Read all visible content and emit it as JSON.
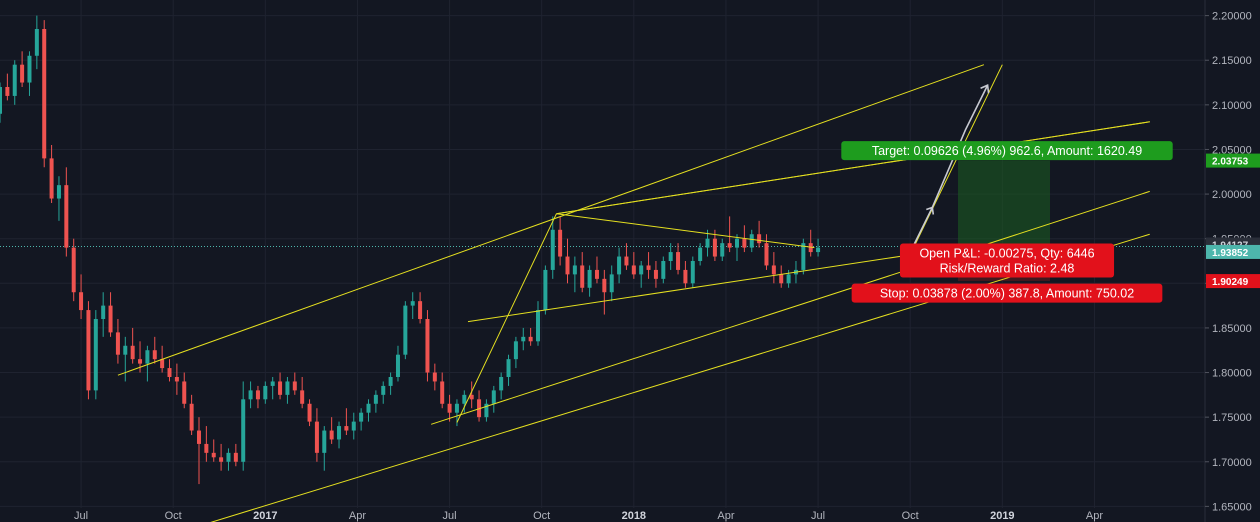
{
  "chart_data": {
    "type": "candlestick",
    "title": "",
    "ylim": [
      1.6325,
      2.2175
    ],
    "y_ticks": [
      "1.65000",
      "1.70000",
      "1.75000",
      "1.80000",
      "1.85000",
      "1.90000",
      "1.95000",
      "2.00000",
      "2.05000",
      "2.10000",
      "2.15000",
      "2.20000"
    ],
    "x_ticks": [
      {
        "label": "Jul",
        "bold": false
      },
      {
        "label": "Oct",
        "bold": false
      },
      {
        "label": "2017",
        "bold": true
      },
      {
        "label": "Apr",
        "bold": false
      },
      {
        "label": "Jul",
        "bold": false
      },
      {
        "label": "Oct",
        "bold": false
      },
      {
        "label": "2018",
        "bold": true
      },
      {
        "label": "Apr",
        "bold": false
      },
      {
        "label": "Jul",
        "bold": false
      },
      {
        "label": "Oct",
        "bold": false
      },
      {
        "label": "2019",
        "bold": true
      },
      {
        "label": "Apr",
        "bold": false
      }
    ],
    "grid": true,
    "colors": {
      "up": "#26a69a",
      "down": "#ef5350",
      "line": "#e5e020",
      "target": "#1e9c1e",
      "stop": "#e2111b",
      "price": "#4db6ac"
    },
    "price_labels": [
      {
        "value": 2.03753,
        "label": "2.03753",
        "kind": "target"
      },
      {
        "value": 1.94127,
        "label": "1.94127",
        "kind": "current"
      },
      {
        "value": 1.93852,
        "label": "1.93852",
        "kind": "last"
      },
      {
        "value": 1.90249,
        "label": "1.90249",
        "kind": "stop"
      }
    ],
    "position": {
      "entry": 1.94127,
      "target": 2.03753,
      "stop": 1.90249,
      "target_text": "Target: 0.09626 (4.96%) 962.6, Amount: 1620.49",
      "open_text": "Open P&L: -0.00275, Qty: 6446",
      "rr_text": "Risk/Reward Ratio: 2.48",
      "stop_text": "Stop: 0.03878 (2.00%) 387.8, Amount: 750.02"
    },
    "trendlines": [
      [
        [
          2016.6,
          1.797
        ],
        [
          2018.95,
          2.145
        ]
      ],
      [
        [
          2016.82,
          1.628
        ],
        [
          2019.4,
          1.955
        ]
      ],
      [
        [
          2017.45,
          1.742
        ],
        [
          2019.4,
          2.003
        ]
      ],
      [
        [
          2017.79,
          1.978
        ],
        [
          2019.4,
          2.081
        ]
      ],
      [
        [
          2017.79,
          1.978
        ],
        [
          2018.49,
          1.94
        ]
      ],
      [
        [
          2017.55,
          1.857
        ],
        [
          2018.8,
          1.935
        ]
      ],
      [
        [
          2017.52,
          1.744
        ],
        [
          2017.79,
          1.978
        ]
      ],
      [
        [
          2018.73,
          1.915
        ],
        [
          2019.0,
          2.145
        ]
      ],
      [
        [
          2017.79,
          1.978
        ],
        [
          2019.4,
          2.081
        ]
      ]
    ],
    "projection": [
      [
        2018.73,
        1.918
      ],
      [
        2018.81,
        1.985
      ],
      [
        2018.9,
        2.072
      ],
      [
        2018.96,
        2.122
      ]
    ],
    "candles": [
      [
        2016.16,
        2.05,
        2.08,
        2.04,
        2.065
      ],
      [
        2016.18,
        2.065,
        2.1,
        2.05,
        2.08
      ],
      [
        2016.2,
        2.08,
        2.09,
        2.07,
        2.088
      ],
      [
        2016.22,
        2.088,
        2.125,
        2.08,
        2.11
      ],
      [
        2016.24,
        2.11,
        2.145,
        2.095,
        2.13
      ],
      [
        2016.26,
        2.13,
        2.14,
        2.085,
        2.09
      ],
      [
        2016.28,
        2.09,
        2.125,
        2.08,
        2.12
      ],
      [
        2016.3,
        2.12,
        2.135,
        2.105,
        2.11
      ],
      [
        2016.32,
        2.11,
        2.15,
        2.1,
        2.145
      ],
      [
        2016.34,
        2.145,
        2.16,
        2.12,
        2.125
      ],
      [
        2016.36,
        2.125,
        2.16,
        2.11,
        2.155
      ],
      [
        2016.38,
        2.155,
        2.2,
        2.14,
        2.185
      ],
      [
        2016.4,
        2.185,
        2.195,
        2.03,
        2.04
      ],
      [
        2016.42,
        2.04,
        2.055,
        1.99,
        1.995
      ],
      [
        2016.44,
        1.995,
        2.02,
        1.97,
        2.01
      ],
      [
        2016.46,
        2.01,
        2.03,
        1.93,
        1.94
      ],
      [
        2016.48,
        1.94,
        1.95,
        1.88,
        1.89
      ],
      [
        2016.5,
        1.89,
        1.91,
        1.86,
        1.87
      ],
      [
        2016.52,
        1.87,
        1.88,
        1.77,
        1.78
      ],
      [
        2016.54,
        1.78,
        1.87,
        1.77,
        1.86
      ],
      [
        2016.56,
        1.86,
        1.89,
        1.84,
        1.875
      ],
      [
        2016.58,
        1.875,
        1.89,
        1.84,
        1.845
      ],
      [
        2016.6,
        1.845,
        1.86,
        1.81,
        1.82
      ],
      [
        2016.62,
        1.82,
        1.84,
        1.79,
        1.83
      ],
      [
        2016.64,
        1.83,
        1.85,
        1.81,
        1.815
      ],
      [
        2016.66,
        1.815,
        1.835,
        1.8,
        1.81
      ],
      [
        2016.68,
        1.81,
        1.83,
        1.79,
        1.825
      ],
      [
        2016.7,
        1.825,
        1.84,
        1.81,
        1.815
      ],
      [
        2016.72,
        1.815,
        1.83,
        1.8,
        1.805
      ],
      [
        2016.74,
        1.805,
        1.815,
        1.79,
        1.795
      ],
      [
        2016.76,
        1.795,
        1.81,
        1.775,
        1.79
      ],
      [
        2016.78,
        1.79,
        1.8,
        1.76,
        1.765
      ],
      [
        2016.8,
        1.765,
        1.775,
        1.73,
        1.735
      ],
      [
        2016.82,
        1.735,
        1.75,
        1.675,
        1.72
      ],
      [
        2016.84,
        1.72,
        1.74,
        1.7,
        1.71
      ],
      [
        2016.86,
        1.71,
        1.725,
        1.7,
        1.705
      ],
      [
        2016.88,
        1.705,
        1.72,
        1.69,
        1.7
      ],
      [
        2016.9,
        1.7,
        1.715,
        1.69,
        1.71
      ],
      [
        2016.92,
        1.71,
        1.72,
        1.695,
        1.7
      ],
      [
        2016.94,
        1.7,
        1.79,
        1.69,
        1.77
      ],
      [
        2016.96,
        1.77,
        1.79,
        1.76,
        1.78
      ],
      [
        2016.98,
        1.78,
        1.785,
        1.76,
        1.77
      ],
      [
        2017.0,
        1.77,
        1.79,
        1.765,
        1.785
      ],
      [
        2017.02,
        1.785,
        1.795,
        1.77,
        1.79
      ],
      [
        2017.04,
        1.79,
        1.8,
        1.77,
        1.775
      ],
      [
        2017.06,
        1.775,
        1.795,
        1.765,
        1.79
      ],
      [
        2017.08,
        1.79,
        1.8,
        1.775,
        1.78
      ],
      [
        2017.1,
        1.78,
        1.795,
        1.76,
        1.765
      ],
      [
        2017.12,
        1.765,
        1.77,
        1.74,
        1.745
      ],
      [
        2017.14,
        1.745,
        1.76,
        1.7,
        1.71
      ],
      [
        2017.16,
        1.71,
        1.74,
        1.69,
        1.735
      ],
      [
        2017.18,
        1.735,
        1.75,
        1.72,
        1.725
      ],
      [
        2017.2,
        1.725,
        1.745,
        1.715,
        1.74
      ],
      [
        2017.22,
        1.74,
        1.76,
        1.73,
        1.735
      ],
      [
        2017.24,
        1.735,
        1.755,
        1.725,
        1.745
      ],
      [
        2017.26,
        1.745,
        1.76,
        1.735,
        1.755
      ],
      [
        2017.28,
        1.755,
        1.77,
        1.745,
        1.765
      ],
      [
        2017.3,
        1.765,
        1.78,
        1.755,
        1.775
      ],
      [
        2017.32,
        1.775,
        1.79,
        1.765,
        1.785
      ],
      [
        2017.34,
        1.785,
        1.8,
        1.775,
        1.795
      ],
      [
        2017.36,
        1.795,
        1.83,
        1.79,
        1.82
      ],
      [
        2017.38,
        1.82,
        1.88,
        1.815,
        1.875
      ],
      [
        2017.4,
        1.875,
        1.89,
        1.86,
        1.88
      ],
      [
        2017.42,
        1.88,
        1.89,
        1.855,
        1.86
      ],
      [
        2017.44,
        1.86,
        1.87,
        1.79,
        1.8
      ],
      [
        2017.46,
        1.8,
        1.81,
        1.78,
        1.79
      ],
      [
        2017.48,
        1.79,
        1.8,
        1.76,
        1.765
      ],
      [
        2017.5,
        1.765,
        1.775,
        1.745,
        1.755
      ],
      [
        2017.52,
        1.755,
        1.77,
        1.74,
        1.765
      ],
      [
        2017.54,
        1.765,
        1.78,
        1.755,
        1.775
      ],
      [
        2017.56,
        1.775,
        1.79,
        1.76,
        1.77
      ],
      [
        2017.58,
        1.77,
        1.78,
        1.745,
        1.75
      ],
      [
        2017.6,
        1.75,
        1.77,
        1.745,
        1.765
      ],
      [
        2017.62,
        1.765,
        1.785,
        1.755,
        1.78
      ],
      [
        2017.64,
        1.78,
        1.8,
        1.77,
        1.795
      ],
      [
        2017.66,
        1.795,
        1.82,
        1.785,
        1.815
      ],
      [
        2017.68,
        1.815,
        1.84,
        1.805,
        1.835
      ],
      [
        2017.7,
        1.835,
        1.85,
        1.825,
        1.84
      ],
      [
        2017.72,
        1.84,
        1.85,
        1.83,
        1.835
      ],
      [
        2017.74,
        1.835,
        1.88,
        1.83,
        1.87
      ],
      [
        2017.76,
        1.87,
        1.92,
        1.865,
        1.915
      ],
      [
        2017.78,
        1.915,
        1.975,
        1.905,
        1.96
      ],
      [
        2017.8,
        1.96,
        1.975,
        1.92,
        1.93
      ],
      [
        2017.82,
        1.93,
        1.95,
        1.9,
        1.91
      ],
      [
        2017.84,
        1.91,
        1.93,
        1.89,
        1.92
      ],
      [
        2017.86,
        1.92,
        1.935,
        1.89,
        1.895
      ],
      [
        2017.88,
        1.895,
        1.92,
        1.885,
        1.915
      ],
      [
        2017.9,
        1.915,
        1.93,
        1.9,
        1.905
      ],
      [
        2017.92,
        1.905,
        1.915,
        1.865,
        1.89
      ],
      [
        2017.94,
        1.89,
        1.92,
        1.88,
        1.91
      ],
      [
        2017.96,
        1.91,
        1.94,
        1.9,
        1.93
      ],
      [
        2017.98,
        1.93,
        1.945,
        1.915,
        1.92
      ],
      [
        2018.0,
        1.92,
        1.935,
        1.905,
        1.91
      ],
      [
        2018.02,
        1.91,
        1.925,
        1.895,
        1.92
      ],
      [
        2018.04,
        1.92,
        1.935,
        1.905,
        1.915
      ],
      [
        2018.06,
        1.915,
        1.925,
        1.895,
        1.905
      ],
      [
        2018.08,
        1.905,
        1.93,
        1.9,
        1.925
      ],
      [
        2018.1,
        1.925,
        1.945,
        1.915,
        1.935
      ],
      [
        2018.12,
        1.935,
        1.945,
        1.91,
        1.915
      ],
      [
        2018.14,
        1.915,
        1.925,
        1.895,
        1.9
      ],
      [
        2018.16,
        1.9,
        1.93,
        1.895,
        1.925
      ],
      [
        2018.18,
        1.925,
        1.945,
        1.92,
        1.94
      ],
      [
        2018.2,
        1.94,
        1.96,
        1.93,
        1.95
      ],
      [
        2018.22,
        1.95,
        1.96,
        1.925,
        1.93
      ],
      [
        2018.24,
        1.93,
        1.95,
        1.925,
        1.945
      ],
      [
        2018.26,
        1.945,
        1.975,
        1.935,
        1.94
      ],
      [
        2018.28,
        1.94,
        1.955,
        1.925,
        1.95
      ],
      [
        2018.3,
        1.95,
        1.965,
        1.935,
        1.94
      ],
      [
        2018.32,
        1.94,
        1.96,
        1.935,
        1.955
      ],
      [
        2018.34,
        1.955,
        1.97,
        1.94,
        1.945
      ],
      [
        2018.36,
        1.945,
        1.955,
        1.915,
        1.92
      ],
      [
        2018.38,
        1.92,
        1.935,
        1.9,
        1.91
      ],
      [
        2018.4,
        1.91,
        1.92,
        1.895,
        1.9
      ],
      [
        2018.42,
        1.9,
        1.915,
        1.895,
        1.91
      ],
      [
        2018.44,
        1.91,
        1.925,
        1.9,
        1.915
      ],
      [
        2018.46,
        1.915,
        1.95,
        1.91,
        1.945
      ],
      [
        2018.48,
        1.945,
        1.96,
        1.93,
        1.935
      ],
      [
        2018.5,
        1.935,
        1.95,
        1.93,
        1.94
      ]
    ]
  }
}
